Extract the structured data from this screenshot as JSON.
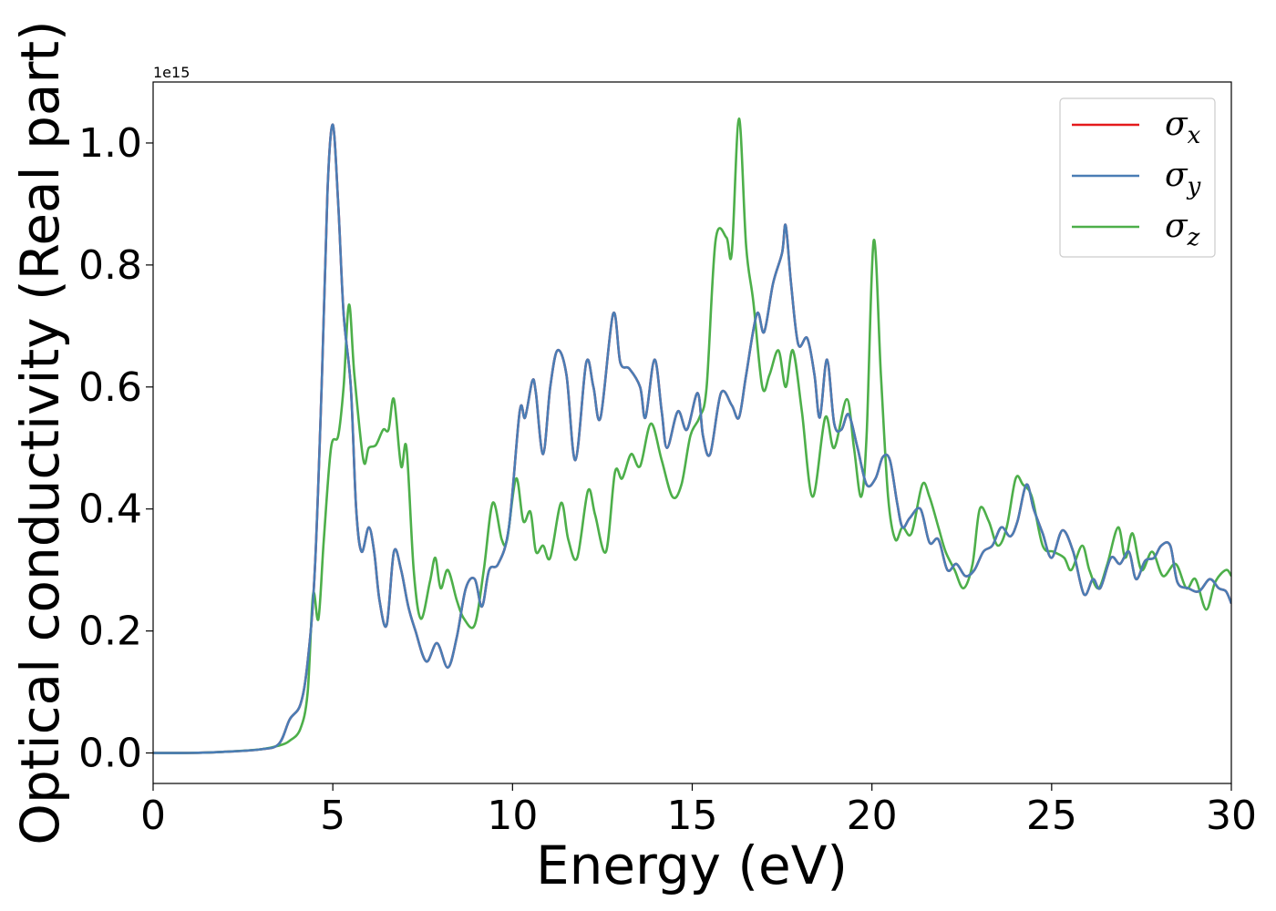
{
  "chart_data": {
    "type": "line",
    "xlabel": "Energy (eV)",
    "ylabel": "Optical conductivity (Real part)",
    "y_offset_label": "1e15",
    "xlim": [
      0,
      30
    ],
    "ylim": [
      -0.05,
      1.1
    ],
    "x_ticks": [
      0,
      5,
      10,
      15,
      20,
      25,
      30
    ],
    "x_tick_labels": [
      "0",
      "5",
      "10",
      "15",
      "20",
      "25",
      "30"
    ],
    "y_ticks": [
      0.0,
      0.2,
      0.4,
      0.6,
      0.8,
      1.0
    ],
    "y_tick_labels": [
      "0.0",
      "0.2",
      "0.4",
      "0.6",
      "0.8",
      "1.0"
    ],
    "grid": false,
    "legend_position": "top-right",
    "series": [
      {
        "name": "σx",
        "symbol": "σ",
        "subscript": "x",
        "color": "#e41a1c",
        "shares_points_with": "σy"
      },
      {
        "name": "σy",
        "symbol": "σ",
        "subscript": "y",
        "color": "#4a7db5",
        "points": [
          [
            0,
            0.0
          ],
          [
            1,
            0.0
          ],
          [
            2,
            0.002
          ],
          [
            3,
            0.006
          ],
          [
            3.5,
            0.015
          ],
          [
            3.8,
            0.055
          ],
          [
            4.1,
            0.08
          ],
          [
            4.3,
            0.15
          ],
          [
            4.5,
            0.3
          ],
          [
            4.7,
            0.62
          ],
          [
            4.85,
            0.92
          ],
          [
            5.0,
            1.03
          ],
          [
            5.15,
            0.9
          ],
          [
            5.3,
            0.72
          ],
          [
            5.5,
            0.6
          ],
          [
            5.65,
            0.4
          ],
          [
            5.8,
            0.33
          ],
          [
            6.0,
            0.37
          ],
          [
            6.15,
            0.33
          ],
          [
            6.3,
            0.25
          ],
          [
            6.5,
            0.21
          ],
          [
            6.7,
            0.33
          ],
          [
            6.9,
            0.3
          ],
          [
            7.1,
            0.24
          ],
          [
            7.3,
            0.2
          ],
          [
            7.6,
            0.15
          ],
          [
            7.9,
            0.18
          ],
          [
            8.2,
            0.14
          ],
          [
            8.45,
            0.19
          ],
          [
            8.7,
            0.27
          ],
          [
            8.95,
            0.285
          ],
          [
            9.15,
            0.24
          ],
          [
            9.35,
            0.3
          ],
          [
            9.6,
            0.31
          ],
          [
            9.9,
            0.37
          ],
          [
            10.2,
            0.56
          ],
          [
            10.35,
            0.55
          ],
          [
            10.55,
            0.61
          ],
          [
            10.65,
            0.59
          ],
          [
            10.85,
            0.49
          ],
          [
            11.05,
            0.6
          ],
          [
            11.25,
            0.66
          ],
          [
            11.5,
            0.62
          ],
          [
            11.75,
            0.48
          ],
          [
            12.05,
            0.64
          ],
          [
            12.25,
            0.6
          ],
          [
            12.45,
            0.55
          ],
          [
            12.8,
            0.72
          ],
          [
            13.0,
            0.64
          ],
          [
            13.25,
            0.63
          ],
          [
            13.55,
            0.6
          ],
          [
            13.7,
            0.55
          ],
          [
            13.95,
            0.645
          ],
          [
            14.15,
            0.56
          ],
          [
            14.3,
            0.5
          ],
          [
            14.6,
            0.56
          ],
          [
            14.85,
            0.53
          ],
          [
            15.15,
            0.59
          ],
          [
            15.3,
            0.52
          ],
          [
            15.5,
            0.49
          ],
          [
            15.8,
            0.59
          ],
          [
            16.1,
            0.57
          ],
          [
            16.3,
            0.55
          ],
          [
            16.5,
            0.62
          ],
          [
            16.8,
            0.72
          ],
          [
            17.0,
            0.69
          ],
          [
            17.25,
            0.77
          ],
          [
            17.5,
            0.82
          ],
          [
            17.6,
            0.865
          ],
          [
            17.75,
            0.77
          ],
          [
            17.95,
            0.67
          ],
          [
            18.2,
            0.68
          ],
          [
            18.4,
            0.62
          ],
          [
            18.55,
            0.55
          ],
          [
            18.75,
            0.645
          ],
          [
            18.95,
            0.54
          ],
          [
            19.15,
            0.53
          ],
          [
            19.35,
            0.555
          ],
          [
            19.6,
            0.5
          ],
          [
            19.85,
            0.44
          ],
          [
            20.1,
            0.45
          ],
          [
            20.3,
            0.485
          ],
          [
            20.5,
            0.48
          ],
          [
            20.7,
            0.41
          ],
          [
            20.85,
            0.37
          ],
          [
            21.05,
            0.385
          ],
          [
            21.35,
            0.4
          ],
          [
            21.6,
            0.345
          ],
          [
            21.85,
            0.35
          ],
          [
            22.1,
            0.3
          ],
          [
            22.35,
            0.31
          ],
          [
            22.6,
            0.29
          ],
          [
            22.85,
            0.3
          ],
          [
            23.1,
            0.33
          ],
          [
            23.35,
            0.34
          ],
          [
            23.6,
            0.37
          ],
          [
            23.85,
            0.355
          ],
          [
            24.05,
            0.38
          ],
          [
            24.3,
            0.44
          ],
          [
            24.5,
            0.4
          ],
          [
            24.75,
            0.36
          ],
          [
            25.0,
            0.32
          ],
          [
            25.3,
            0.365
          ],
          [
            25.6,
            0.33
          ],
          [
            25.9,
            0.26
          ],
          [
            26.15,
            0.285
          ],
          [
            26.35,
            0.27
          ],
          [
            26.65,
            0.32
          ],
          [
            26.9,
            0.31
          ],
          [
            27.15,
            0.33
          ],
          [
            27.35,
            0.285
          ],
          [
            27.6,
            0.315
          ],
          [
            27.85,
            0.32
          ],
          [
            28.05,
            0.34
          ],
          [
            28.3,
            0.34
          ],
          [
            28.5,
            0.28
          ],
          [
            28.8,
            0.27
          ],
          [
            29.1,
            0.265
          ],
          [
            29.4,
            0.285
          ],
          [
            29.65,
            0.27
          ],
          [
            29.85,
            0.265
          ],
          [
            30.0,
            0.245
          ]
        ]
      },
      {
        "name": "σz",
        "symbol": "σ",
        "subscript": "z",
        "color": "#4daf4a",
        "points": [
          [
            0,
            0.0
          ],
          [
            1,
            0.0
          ],
          [
            2,
            0.002
          ],
          [
            3,
            0.006
          ],
          [
            3.5,
            0.012
          ],
          [
            3.8,
            0.02
          ],
          [
            4.1,
            0.04
          ],
          [
            4.3,
            0.1
          ],
          [
            4.45,
            0.26
          ],
          [
            4.6,
            0.22
          ],
          [
            4.75,
            0.35
          ],
          [
            4.95,
            0.5
          ],
          [
            5.15,
            0.52
          ],
          [
            5.3,
            0.6
          ],
          [
            5.45,
            0.735
          ],
          [
            5.6,
            0.62
          ],
          [
            5.85,
            0.48
          ],
          [
            6.0,
            0.5
          ],
          [
            6.2,
            0.505
          ],
          [
            6.4,
            0.53
          ],
          [
            6.55,
            0.53
          ],
          [
            6.7,
            0.58
          ],
          [
            6.9,
            0.47
          ],
          [
            7.05,
            0.5
          ],
          [
            7.25,
            0.3
          ],
          [
            7.45,
            0.22
          ],
          [
            7.7,
            0.28
          ],
          [
            7.85,
            0.32
          ],
          [
            8.0,
            0.27
          ],
          [
            8.2,
            0.3
          ],
          [
            8.45,
            0.25
          ],
          [
            8.65,
            0.22
          ],
          [
            8.95,
            0.21
          ],
          [
            9.2,
            0.3
          ],
          [
            9.45,
            0.41
          ],
          [
            9.7,
            0.35
          ],
          [
            9.85,
            0.35
          ],
          [
            10.1,
            0.45
          ],
          [
            10.3,
            0.38
          ],
          [
            10.5,
            0.395
          ],
          [
            10.65,
            0.33
          ],
          [
            10.85,
            0.34
          ],
          [
            11.05,
            0.32
          ],
          [
            11.35,
            0.41
          ],
          [
            11.55,
            0.35
          ],
          [
            11.8,
            0.32
          ],
          [
            12.1,
            0.43
          ],
          [
            12.3,
            0.39
          ],
          [
            12.6,
            0.33
          ],
          [
            12.85,
            0.46
          ],
          [
            13.05,
            0.45
          ],
          [
            13.3,
            0.49
          ],
          [
            13.55,
            0.47
          ],
          [
            13.85,
            0.54
          ],
          [
            14.15,
            0.48
          ],
          [
            14.45,
            0.42
          ],
          [
            14.7,
            0.44
          ],
          [
            14.95,
            0.52
          ],
          [
            15.2,
            0.55
          ],
          [
            15.4,
            0.6
          ],
          [
            15.65,
            0.84
          ],
          [
            15.95,
            0.845
          ],
          [
            16.1,
            0.82
          ],
          [
            16.3,
            1.04
          ],
          [
            16.5,
            0.83
          ],
          [
            16.7,
            0.74
          ],
          [
            16.95,
            0.6
          ],
          [
            17.15,
            0.62
          ],
          [
            17.4,
            0.66
          ],
          [
            17.6,
            0.6
          ],
          [
            17.8,
            0.66
          ],
          [
            18.05,
            0.56
          ],
          [
            18.35,
            0.42
          ],
          [
            18.7,
            0.55
          ],
          [
            18.95,
            0.5
          ],
          [
            19.3,
            0.58
          ],
          [
            19.5,
            0.5
          ],
          [
            19.7,
            0.42
          ],
          [
            19.85,
            0.52
          ],
          [
            20.05,
            0.84
          ],
          [
            20.25,
            0.62
          ],
          [
            20.45,
            0.42
          ],
          [
            20.65,
            0.35
          ],
          [
            20.85,
            0.37
          ],
          [
            21.1,
            0.36
          ],
          [
            21.4,
            0.44
          ],
          [
            21.6,
            0.42
          ],
          [
            21.85,
            0.37
          ],
          [
            22.05,
            0.33
          ],
          [
            22.3,
            0.3
          ],
          [
            22.55,
            0.27
          ],
          [
            22.8,
            0.31
          ],
          [
            23.0,
            0.4
          ],
          [
            23.25,
            0.38
          ],
          [
            23.5,
            0.34
          ],
          [
            23.75,
            0.37
          ],
          [
            24.0,
            0.45
          ],
          [
            24.2,
            0.44
          ],
          [
            24.45,
            0.42
          ],
          [
            24.75,
            0.34
          ],
          [
            25.05,
            0.33
          ],
          [
            25.35,
            0.32
          ],
          [
            25.55,
            0.3
          ],
          [
            25.85,
            0.34
          ],
          [
            26.05,
            0.3
          ],
          [
            26.3,
            0.27
          ],
          [
            26.55,
            0.31
          ],
          [
            26.85,
            0.37
          ],
          [
            27.05,
            0.32
          ],
          [
            27.25,
            0.36
          ],
          [
            27.5,
            0.3
          ],
          [
            27.8,
            0.33
          ],
          [
            28.1,
            0.29
          ],
          [
            28.45,
            0.31
          ],
          [
            28.75,
            0.27
          ],
          [
            29.0,
            0.285
          ],
          [
            29.3,
            0.235
          ],
          [
            29.55,
            0.28
          ],
          [
            29.85,
            0.3
          ],
          [
            30.0,
            0.29
          ]
        ]
      }
    ]
  }
}
